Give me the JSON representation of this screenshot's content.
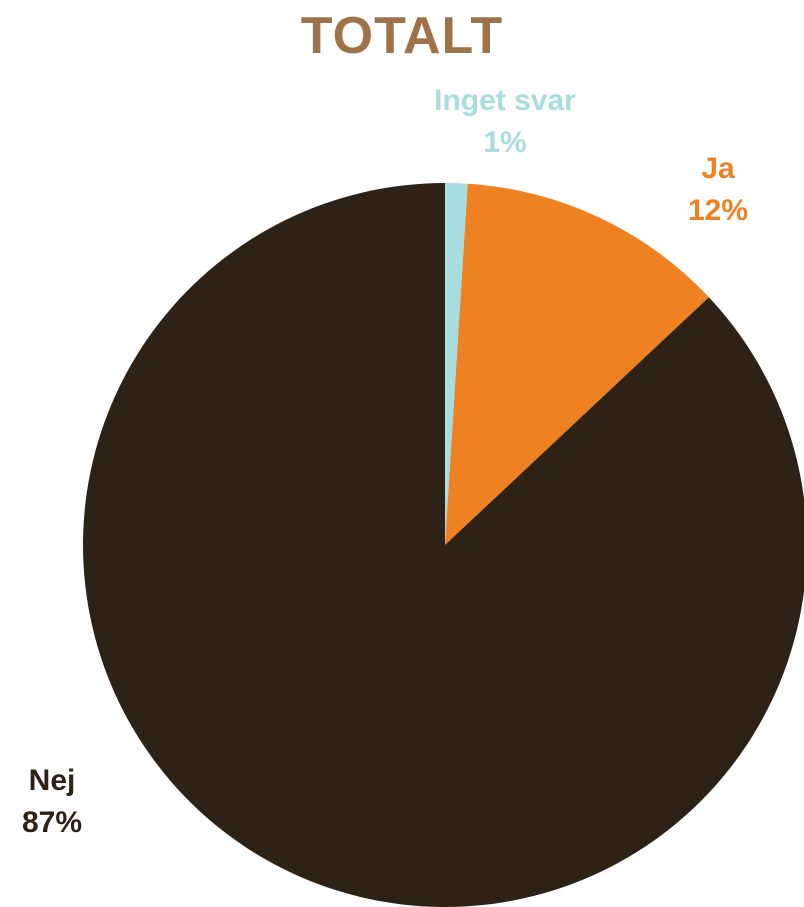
{
  "chart_data": {
    "type": "pie",
    "title": "TOTALT",
    "title_color": "#9E734A",
    "slices": [
      {
        "label": "Inget svar",
        "value": 1,
        "display": "1%",
        "color": "#A8DDE0",
        "label_color": "#A8DDE0"
      },
      {
        "label": "Ja",
        "value": 12,
        "display": "12%",
        "color": "#EE8223",
        "label_color": "#EE8223"
      },
      {
        "label": "Nej",
        "value": 87,
        "display": "87%",
        "color": "#2E2116",
        "label_color": "#2E2116"
      }
    ],
    "start_angle_deg": 0,
    "direction": "clockwise",
    "legend": "none"
  }
}
